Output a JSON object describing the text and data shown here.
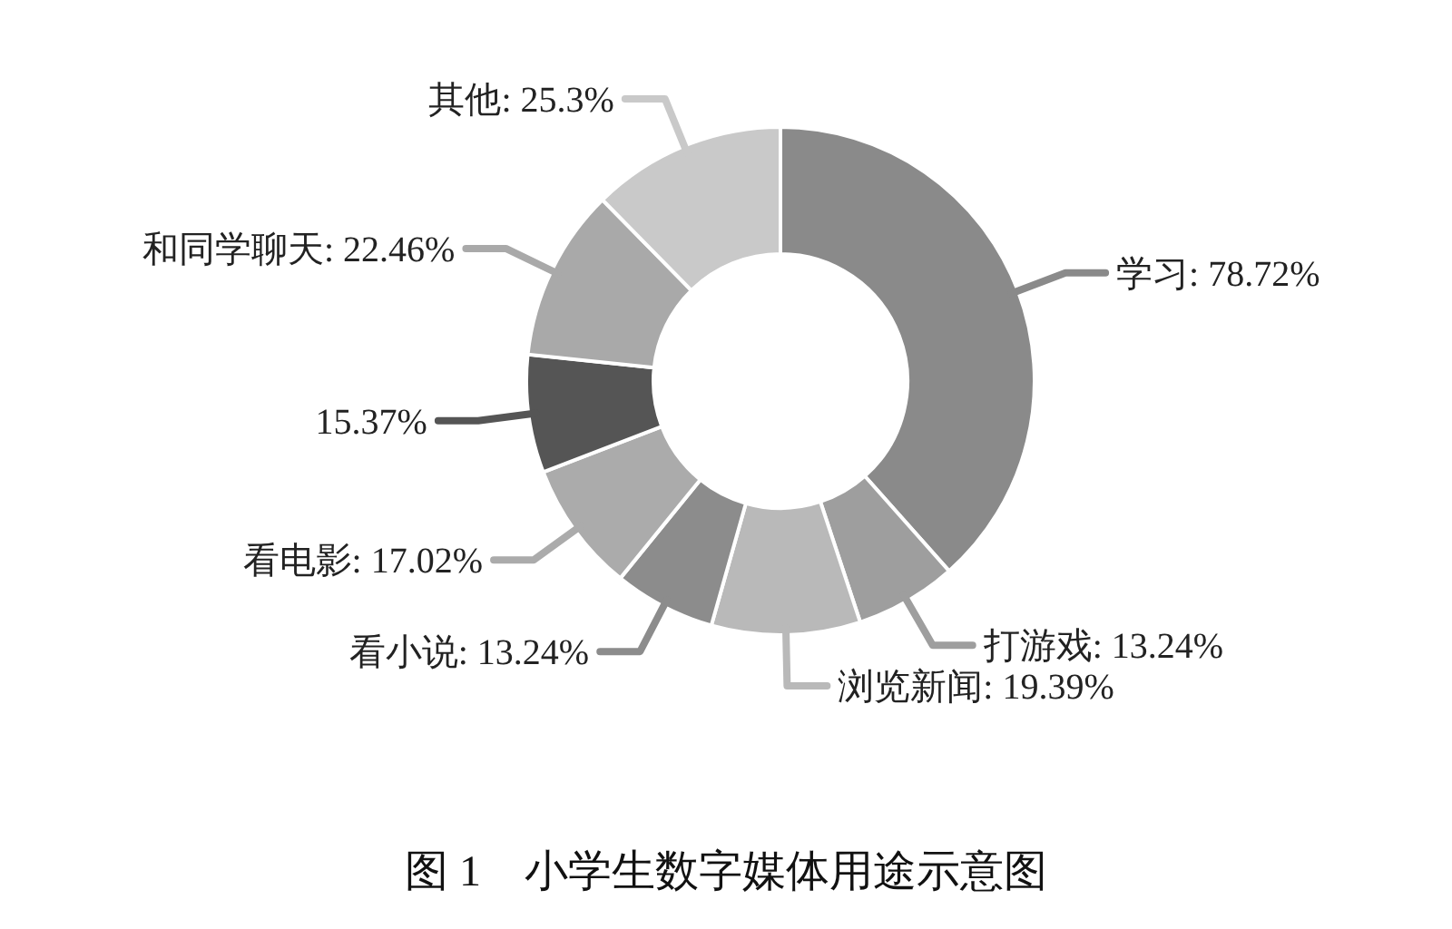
{
  "chart_data": {
    "type": "donut",
    "title": "图 1　小学生数字媒体用途示意图",
    "categories": [
      "学习",
      "打游戏",
      "浏览新闻",
      "看小说",
      "看电影",
      null,
      "和同学聊天",
      "其他"
    ],
    "values": [
      78.72,
      13.24,
      19.39,
      13.24,
      17.02,
      15.37,
      22.46,
      25.3
    ],
    "colors": [
      "#8a8a8a",
      "#9e9e9e",
      "#b9b9b9",
      "#8c8c8c",
      "#ababab",
      "#555555",
      "#a9a9a9",
      "#c9c9c9"
    ],
    "value_labels": [
      ": 78.72%",
      ": 13.24%",
      ": 19.39%",
      ": 13.24%",
      ": 17.02%",
      "15.37%",
      ": 22.46%",
      ": 25.3%"
    ]
  }
}
